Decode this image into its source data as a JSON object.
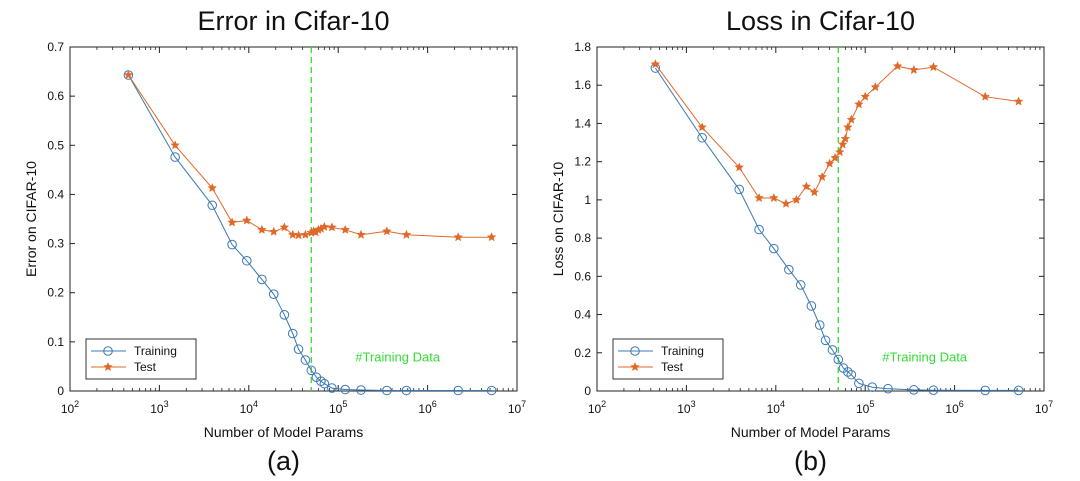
{
  "chart_data": [
    {
      "type": "line",
      "title": "Error in Cifar-10",
      "caption": "(a)",
      "xlabel": "Number of Model Params",
      "ylabel": "Error on CIFAR-10",
      "xscale": "log",
      "xlim": [
        100,
        10000000
      ],
      "ylim": [
        0,
        0.7
      ],
      "yticks": [
        "0",
        "0.1",
        "0.2",
        "0.3",
        "0.4",
        "0.5",
        "0.6",
        "0.7"
      ],
      "xticks": [
        {
          "base": "10",
          "exp": "2"
        },
        {
          "base": "10",
          "exp": "3"
        },
        {
          "base": "10",
          "exp": "4"
        },
        {
          "base": "10",
          "exp": "5"
        },
        {
          "base": "10",
          "exp": "6"
        },
        {
          "base": "10",
          "exp": "7"
        }
      ],
      "vline": {
        "x": 50000,
        "label": "#Training Data",
        "label_y": 0.07,
        "color": "#33dd33"
      },
      "legend": {
        "position": "bottom-left"
      },
      "series": [
        {
          "name": "Training",
          "color": "#3a78b5",
          "marker": "circle",
          "x": [
            450,
            1500,
            3900,
            6500,
            9500,
            14000,
            19000,
            25000,
            31000,
            36000,
            43000,
            50000,
            57000,
            64000,
            70000,
            85000,
            120000,
            180000,
            350000,
            580000,
            2200000,
            5200000
          ],
          "y": [
            0.643,
            0.476,
            0.378,
            0.298,
            0.265,
            0.227,
            0.197,
            0.155,
            0.117,
            0.085,
            0.063,
            0.042,
            0.028,
            0.02,
            0.015,
            0.006,
            0.003,
            0.002,
            0.001,
            0.001,
            0.001,
            0.001
          ]
        },
        {
          "name": "Test",
          "color": "#e0692a",
          "marker": "star",
          "x": [
            450,
            1500,
            3900,
            6500,
            9500,
            14000,
            19000,
            25000,
            31000,
            36000,
            43000,
            50000,
            53000,
            56000,
            60000,
            64000,
            70000,
            85000,
            120000,
            180000,
            350000,
            580000,
            2200000,
            5200000
          ],
          "y": [
            0.643,
            0.5,
            0.413,
            0.343,
            0.347,
            0.328,
            0.324,
            0.333,
            0.318,
            0.317,
            0.318,
            0.322,
            0.325,
            0.323,
            0.328,
            0.33,
            0.334,
            0.333,
            0.328,
            0.318,
            0.325,
            0.318,
            0.313,
            0.313
          ]
        }
      ]
    },
    {
      "type": "line",
      "title": "Loss in Cifar-10",
      "caption": "(b)",
      "xlabel": "Number of Model Params",
      "ylabel": "Loss on CIFAR-10",
      "xscale": "log",
      "xlim": [
        100,
        10000000
      ],
      "ylim": [
        0,
        1.8
      ],
      "yticks": [
        "0",
        "0.2",
        "0.4",
        "0.6",
        "0.8",
        "1",
        "1.2",
        "1.4",
        "1.6",
        "1.8"
      ],
      "xticks": [
        {
          "base": "10",
          "exp": "2"
        },
        {
          "base": "10",
          "exp": "3"
        },
        {
          "base": "10",
          "exp": "4"
        },
        {
          "base": "10",
          "exp": "5"
        },
        {
          "base": "10",
          "exp": "6"
        },
        {
          "base": "10",
          "exp": "7"
        }
      ],
      "vline": {
        "x": 50000,
        "label": "#Training Data",
        "label_y": 0.18,
        "color": "#33dd33"
      },
      "legend": {
        "position": "bottom-left"
      },
      "series": [
        {
          "name": "Training",
          "color": "#3a78b5",
          "marker": "circle",
          "x": [
            450,
            1500,
            3900,
            6500,
            9500,
            14000,
            19000,
            25000,
            31000,
            36000,
            43000,
            50000,
            57000,
            64000,
            70000,
            85000,
            120000,
            180000,
            350000,
            580000,
            2200000,
            5200000
          ],
          "y": [
            1.69,
            1.325,
            1.055,
            0.845,
            0.745,
            0.635,
            0.555,
            0.445,
            0.345,
            0.265,
            0.215,
            0.165,
            0.12,
            0.1,
            0.085,
            0.04,
            0.02,
            0.012,
            0.006,
            0.004,
            0.003,
            0.003
          ]
        },
        {
          "name": "Test",
          "color": "#e0692a",
          "marker": "star",
          "x": [
            450,
            1500,
            3900,
            6500,
            9500,
            13000,
            17000,
            22000,
            27000,
            33000,
            40000,
            46000,
            52000,
            56000,
            60000,
            64000,
            70000,
            85000,
            100000,
            130000,
            230000,
            350000,
            580000,
            2200000,
            5200000
          ],
          "y": [
            1.71,
            1.38,
            1.17,
            1.01,
            1.01,
            0.98,
            1.0,
            1.07,
            1.04,
            1.12,
            1.19,
            1.22,
            1.25,
            1.29,
            1.32,
            1.38,
            1.42,
            1.5,
            1.54,
            1.59,
            1.7,
            1.68,
            1.695,
            1.54,
            1.515
          ]
        }
      ]
    }
  ]
}
